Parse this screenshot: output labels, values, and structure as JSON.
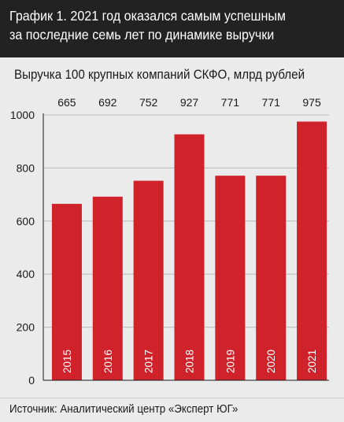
{
  "header": {
    "title": "График 1. 2021 год оказался самым успешным\nза последние семь лет по динамике выручки"
  },
  "source": "Источник: Аналитический центр «Эксперт ЮГ»",
  "colors": {
    "bar": "#d0222b",
    "header_bg": "#222222",
    "background": "#ebebeb",
    "grid": "#b9b9b9"
  },
  "chart_data": {
    "type": "bar",
    "title": "Выручка 100 крупных компаний СКФО, млрд рублей",
    "categories": [
      "2015",
      "2016",
      "2017",
      "2018",
      "2019",
      "2020",
      "2021"
    ],
    "values": [
      665,
      692,
      752,
      927,
      771,
      771,
      975
    ],
    "value_labels": [
      "665",
      "692",
      "752",
      "927",
      "771",
      "771",
      "975"
    ],
    "ylim": [
      0,
      1000
    ],
    "yticks": [
      0,
      200,
      400,
      600,
      800,
      1000
    ],
    "grid": true,
    "category_labels_inside_bars": true,
    "value_labels_position": "top-row"
  }
}
